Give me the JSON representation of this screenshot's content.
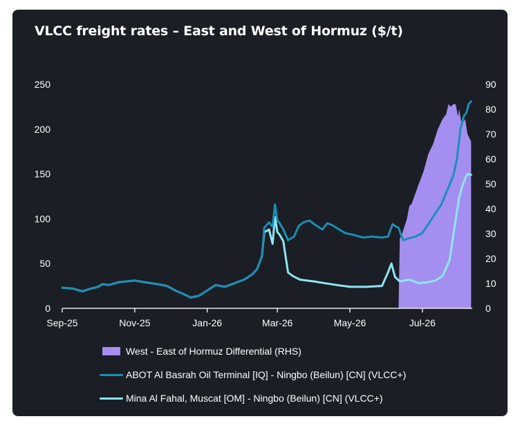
{
  "chart_data": {
    "type": "line",
    "title": "VLCC freight rates – East and West of Hormuz ($/t)",
    "x_labels": [
      "Sep-25",
      "Nov-25",
      "Jan-26",
      "Mar-26",
      "May-26",
      "Jul-26"
    ],
    "y_left": {
      "min": 0,
      "max": 250,
      "ticks": [
        0,
        50,
        100,
        150,
        200,
        250
      ]
    },
    "y_right": {
      "min": 0,
      "max": 90,
      "ticks": [
        0,
        10,
        20,
        30,
        40,
        50,
        60,
        70,
        80,
        90
      ]
    },
    "legend_position": "bottom",
    "grid": false,
    "series": [
      {
        "name": "West - East of Hormuz Differential (RHS)",
        "kind": "area",
        "axis": "right",
        "color": "#a48ff0",
        "points": [
          [
            "2026-06-11",
            0
          ],
          [
            "2026-06-12",
            28
          ],
          [
            "2026-06-14",
            30
          ],
          [
            "2026-06-16",
            33
          ],
          [
            "2026-06-18",
            36
          ],
          [
            "2026-06-20",
            41
          ],
          [
            "2026-06-22",
            42
          ],
          [
            "2026-06-25",
            46
          ],
          [
            "2026-06-28",
            50
          ],
          [
            "2026-07-02",
            55
          ],
          [
            "2026-07-06",
            62
          ],
          [
            "2026-07-10",
            66
          ],
          [
            "2026-07-14",
            72
          ],
          [
            "2026-07-18",
            76
          ],
          [
            "2026-07-21",
            78
          ],
          [
            "2026-07-23",
            82
          ],
          [
            "2026-07-25",
            81
          ],
          [
            "2026-07-27",
            82
          ],
          [
            "2026-07-29",
            82
          ],
          [
            "2026-07-31",
            77
          ],
          [
            "2026-08-01",
            80
          ],
          [
            "2026-08-03",
            74
          ],
          [
            "2026-08-06",
            76
          ],
          [
            "2026-08-08",
            70
          ],
          [
            "2026-08-11",
            67
          ]
        ]
      },
      {
        "name": "ABOT Al Basrah Oil Terminal [IQ] - Ningbo (Beilun) [CN] (VLCC+)",
        "kind": "line",
        "axis": "left",
        "color": "#1b8eb5",
        "points": [
          [
            "2025-09-01",
            23
          ],
          [
            "2025-09-10",
            22
          ],
          [
            "2025-09-18",
            19
          ],
          [
            "2025-09-25",
            22
          ],
          [
            "2025-10-01",
            24
          ],
          [
            "2025-10-05",
            27
          ],
          [
            "2025-10-10",
            26
          ],
          [
            "2025-10-18",
            29
          ],
          [
            "2025-10-25",
            30
          ],
          [
            "2025-11-01",
            31
          ],
          [
            "2025-11-10",
            29
          ],
          [
            "2025-11-20",
            27
          ],
          [
            "2025-11-28",
            25
          ],
          [
            "2025-12-05",
            20
          ],
          [
            "2025-12-12",
            16
          ],
          [
            "2025-12-18",
            12
          ],
          [
            "2025-12-25",
            14
          ],
          [
            "2026-01-01",
            20
          ],
          [
            "2026-01-08",
            26
          ],
          [
            "2026-01-16",
            24
          ],
          [
            "2026-01-24",
            28
          ],
          [
            "2026-02-01",
            32
          ],
          [
            "2026-02-08",
            38
          ],
          [
            "2026-02-12",
            44
          ],
          [
            "2026-02-16",
            58
          ],
          [
            "2026-02-18",
            90
          ],
          [
            "2026-02-22",
            96
          ],
          [
            "2026-02-25",
            91
          ],
          [
            "2026-02-27",
            116
          ],
          [
            "2026-03-01",
            98
          ],
          [
            "2026-03-03",
            95
          ],
          [
            "2026-03-06",
            88
          ],
          [
            "2026-03-10",
            76
          ],
          [
            "2026-03-15",
            80
          ],
          [
            "2026-03-19",
            92
          ],
          [
            "2026-03-23",
            96
          ],
          [
            "2026-03-28",
            98
          ],
          [
            "2026-04-02",
            93
          ],
          [
            "2026-04-08",
            88
          ],
          [
            "2026-04-12",
            95
          ],
          [
            "2026-04-16",
            93
          ],
          [
            "2026-04-22",
            88
          ],
          [
            "2026-04-27",
            84
          ],
          [
            "2026-05-04",
            82
          ],
          [
            "2026-05-12",
            79
          ],
          [
            "2026-05-20",
            80
          ],
          [
            "2026-05-28",
            79
          ],
          [
            "2026-06-02",
            80
          ],
          [
            "2026-06-06",
            94
          ],
          [
            "2026-06-09",
            91
          ],
          [
            "2026-06-11",
            90
          ],
          [
            "2026-06-13",
            82
          ],
          [
            "2026-06-15",
            76
          ],
          [
            "2026-06-19",
            78
          ],
          [
            "2026-06-25",
            80
          ],
          [
            "2026-07-01",
            84
          ],
          [
            "2026-07-06",
            94
          ],
          [
            "2026-07-12",
            106
          ],
          [
            "2026-07-17",
            116
          ],
          [
            "2026-07-22",
            132
          ],
          [
            "2026-07-27",
            148
          ],
          [
            "2026-07-30",
            166
          ],
          [
            "2026-08-02",
            200
          ],
          [
            "2026-08-05",
            215
          ],
          [
            "2026-08-07",
            218
          ],
          [
            "2026-08-09",
            228
          ],
          [
            "2026-08-11",
            231
          ]
        ]
      },
      {
        "name": "Mina Al Fahal, Muscat [OM] - Ningbo (Beilun) [CN] (VLCC+)",
        "kind": "line",
        "axis": "left",
        "color": "#8fe6f2",
        "points": [
          [
            "2025-09-01",
            23
          ],
          [
            "2025-09-10",
            22
          ],
          [
            "2025-09-18",
            19
          ],
          [
            "2025-09-25",
            22
          ],
          [
            "2025-10-01",
            24
          ],
          [
            "2025-10-05",
            27
          ],
          [
            "2025-10-10",
            26
          ],
          [
            "2025-10-18",
            29
          ],
          [
            "2025-10-25",
            30
          ],
          [
            "2025-11-01",
            31
          ],
          [
            "2025-11-10",
            29
          ],
          [
            "2025-11-20",
            27
          ],
          [
            "2025-11-28",
            25
          ],
          [
            "2025-12-05",
            20
          ],
          [
            "2025-12-12",
            16
          ],
          [
            "2025-12-18",
            12
          ],
          [
            "2025-12-25",
            14
          ],
          [
            "2026-01-01",
            20
          ],
          [
            "2026-01-08",
            26
          ],
          [
            "2026-01-16",
            24
          ],
          [
            "2026-01-24",
            28
          ],
          [
            "2026-02-01",
            32
          ],
          [
            "2026-02-08",
            38
          ],
          [
            "2026-02-12",
            44
          ],
          [
            "2026-02-16",
            58
          ],
          [
            "2026-02-18",
            85
          ],
          [
            "2026-02-22",
            88
          ],
          [
            "2026-02-25",
            72
          ],
          [
            "2026-02-27",
            102
          ],
          [
            "2026-03-01",
            85
          ],
          [
            "2026-03-03",
            82
          ],
          [
            "2026-03-06",
            75
          ],
          [
            "2026-03-10",
            40
          ],
          [
            "2026-03-14",
            36
          ],
          [
            "2026-03-20",
            32
          ],
          [
            "2026-04-01",
            30
          ],
          [
            "2026-04-10",
            28
          ],
          [
            "2026-04-20",
            26
          ],
          [
            "2026-05-01",
            24
          ],
          [
            "2026-05-15",
            24
          ],
          [
            "2026-05-28",
            25
          ],
          [
            "2026-06-02",
            40
          ],
          [
            "2026-06-05",
            50
          ],
          [
            "2026-06-08",
            35
          ],
          [
            "2026-06-12",
            30
          ],
          [
            "2026-06-20",
            32
          ],
          [
            "2026-06-28",
            28
          ],
          [
            "2026-07-05",
            29
          ],
          [
            "2026-07-12",
            31
          ],
          [
            "2026-07-18",
            36
          ],
          [
            "2026-07-24",
            54
          ],
          [
            "2026-07-28",
            90
          ],
          [
            "2026-08-01",
            124
          ],
          [
            "2026-08-04",
            138
          ],
          [
            "2026-08-06",
            145
          ],
          [
            "2026-08-08",
            150
          ],
          [
            "2026-08-11",
            149
          ]
        ]
      }
    ]
  }
}
